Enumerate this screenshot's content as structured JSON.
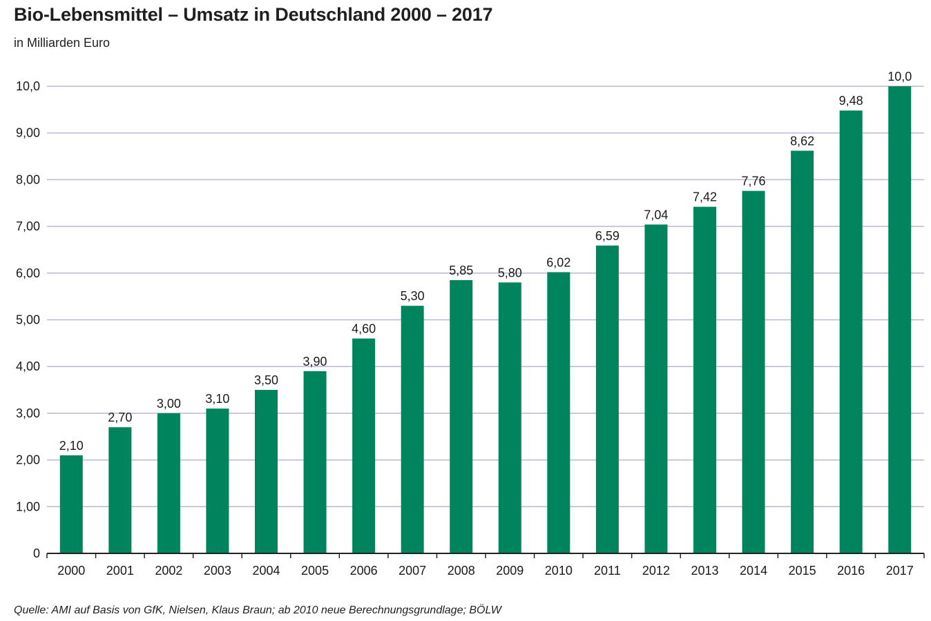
{
  "title": "Bio-Lebensmittel – Umsatz in Deutschland 2000 – 2017",
  "subtitle": "in Milliarden Euro",
  "source": "Quelle: AMI auf Basis von GfK, Nielsen, Klaus Braun; ab 2010 neue Berechnungsgrundlage; BÖLW",
  "colors": {
    "bar": "#00845e",
    "grid": "#b8b8d0",
    "axis": "#222222",
    "text": "#1a1a1a"
  },
  "chart_data": {
    "type": "bar",
    "title": "Bio-Lebensmittel – Umsatz in Deutschland 2000 – 2017",
    "subtitle": "in Milliarden Euro",
    "xlabel": "",
    "ylabel": "",
    "ylim": [
      0,
      10
    ],
    "grid": true,
    "legend": "none",
    "y_ticks": [
      0,
      1,
      2,
      3,
      4,
      5,
      6,
      7,
      8,
      9,
      10
    ],
    "y_tick_labels": [
      "0",
      "1,00",
      "2,00",
      "3,00",
      "4,00",
      "5,00",
      "6,00",
      "7,00",
      "8,00",
      "9,00",
      "10,0"
    ],
    "categories": [
      "2000",
      "2001",
      "2002",
      "2003",
      "2004",
      "2005",
      "2006",
      "2007",
      "2008",
      "2009",
      "2010",
      "2011",
      "2012",
      "2013",
      "2014",
      "2015",
      "2016",
      "2017"
    ],
    "values": [
      2.1,
      2.7,
      3.0,
      3.1,
      3.5,
      3.9,
      4.6,
      5.3,
      5.85,
      5.8,
      6.02,
      6.59,
      7.04,
      7.42,
      7.76,
      8.62,
      9.48,
      10.0
    ],
    "value_labels": [
      "2,10",
      "2,70",
      "3,00",
      "3,10",
      "3,50",
      "3,90",
      "4,60",
      "5,30",
      "5,85",
      "5,80",
      "6,02",
      "6,59",
      "7,04",
      "7,42",
      "7,76",
      "8,62",
      "9,48",
      "10,0"
    ]
  }
}
